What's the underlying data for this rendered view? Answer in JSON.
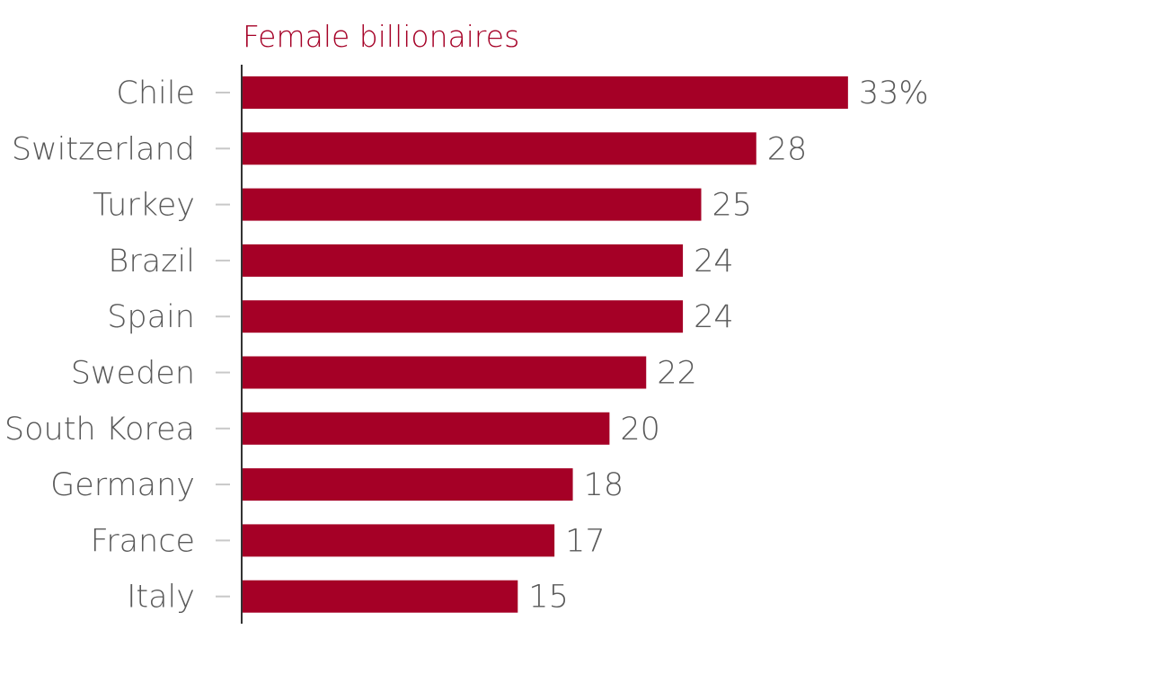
{
  "colors": {
    "bar": "#a50026",
    "title": "#a50026",
    "axis": "#333333",
    "tick": "#c8c8c8",
    "text": "#595959"
  },
  "chart_data": {
    "type": "bar",
    "orientation": "horizontal",
    "title": "Female billionaires",
    "xlabel": "",
    "ylabel": "",
    "categories": [
      "Chile",
      "Switzerland",
      "Turkey",
      "Brazil",
      "Spain",
      "Sweden",
      "South Korea",
      "Germany",
      "France",
      "Italy"
    ],
    "values": [
      33,
      28,
      25,
      24,
      24,
      22,
      20,
      18,
      17,
      15
    ],
    "value_labels": [
      "33%",
      "28",
      "25",
      "24",
      "24",
      "22",
      "20",
      "18",
      "17",
      "15"
    ],
    "unit": "%",
    "xlim": [
      0,
      33
    ],
    "grid": false,
    "legend": "none"
  }
}
